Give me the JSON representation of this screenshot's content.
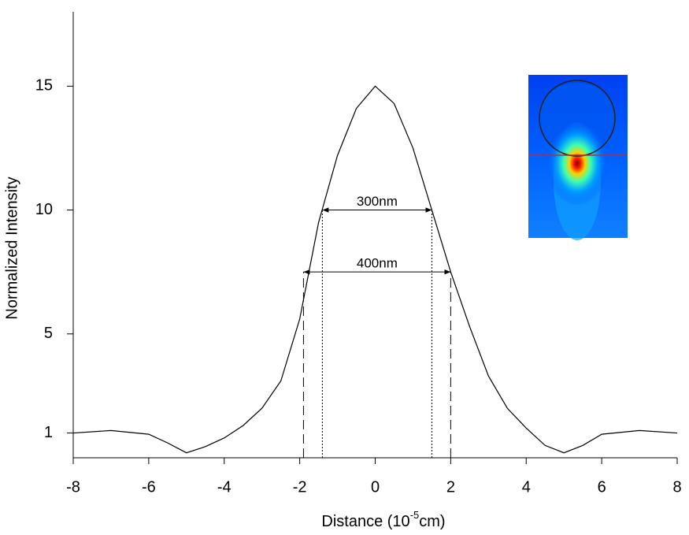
{
  "chart_data": {
    "type": "line",
    "x_label_parts": [
      "Distance (10",
      "-5",
      "cm)"
    ],
    "y_label": "Normalized Intensity",
    "x": [
      -8,
      -7,
      -6,
      -5.5,
      -5,
      -4.5,
      -4,
      -3.5,
      -3,
      -2.5,
      -2,
      -1.5,
      -1,
      -0.5,
      0,
      0.5,
      1,
      1.5,
      2,
      2.5,
      3,
      3.5,
      4,
      4.5,
      5,
      5.5,
      6,
      7,
      8
    ],
    "series": [
      {
        "color": "#000000",
        "values": [
          1.0,
          1.1,
          0.95,
          0.6,
          0.2,
          0.45,
          0.8,
          1.3,
          2.0,
          3.1,
          5.6,
          9.5,
          12.2,
          14.1,
          15.0,
          14.3,
          12.5,
          10.0,
          7.5,
          5.3,
          3.3,
          2.0,
          1.2,
          0.5,
          0.2,
          0.5,
          0.95,
          1.1,
          1.0
        ]
      }
    ],
    "xlim": [
      -8,
      8
    ],
    "ylim": [
      0,
      18
    ],
    "xticks": [
      -8,
      -6,
      -4,
      -2,
      0,
      2,
      4,
      6,
      8
    ],
    "yticks": [
      1,
      5,
      10,
      15
    ],
    "annotations": [
      {
        "label": "300nm",
        "x1": -1.4,
        "x2": 1.5,
        "y": 10,
        "style": "dotted"
      },
      {
        "label": "400nm",
        "x1": -1.9,
        "x2": 2.0,
        "y": 7.5,
        "style": "dashed"
      }
    ]
  }
}
